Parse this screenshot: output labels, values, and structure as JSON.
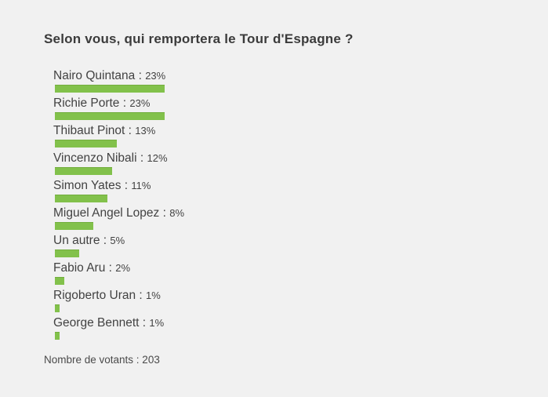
{
  "chart_data": {
    "type": "bar",
    "orientation": "horizontal",
    "title": "Selon vous, qui remportera le Tour d'Espagne ?",
    "categories": [
      "Nairo Quintana",
      "Richie Porte",
      "Thibaut Pinot",
      "Vincenzo Nibali",
      "Simon Yates",
      "Miguel Angel Lopez",
      "Un autre",
      "Fabio Aru",
      "Rigoberto Uran",
      "George Bennett"
    ],
    "values": [
      23,
      23,
      13,
      12,
      11,
      8,
      5,
      2,
      1,
      1
    ],
    "unit": "%",
    "separator": " : ",
    "xlim": [
      0,
      100
    ],
    "grid": false,
    "legend": false,
    "bar_color": "#82c14b",
    "background_color": "#f1f1f1"
  },
  "footer": {
    "text": "Nombre de votants : 203",
    "votes_count": "203"
  }
}
